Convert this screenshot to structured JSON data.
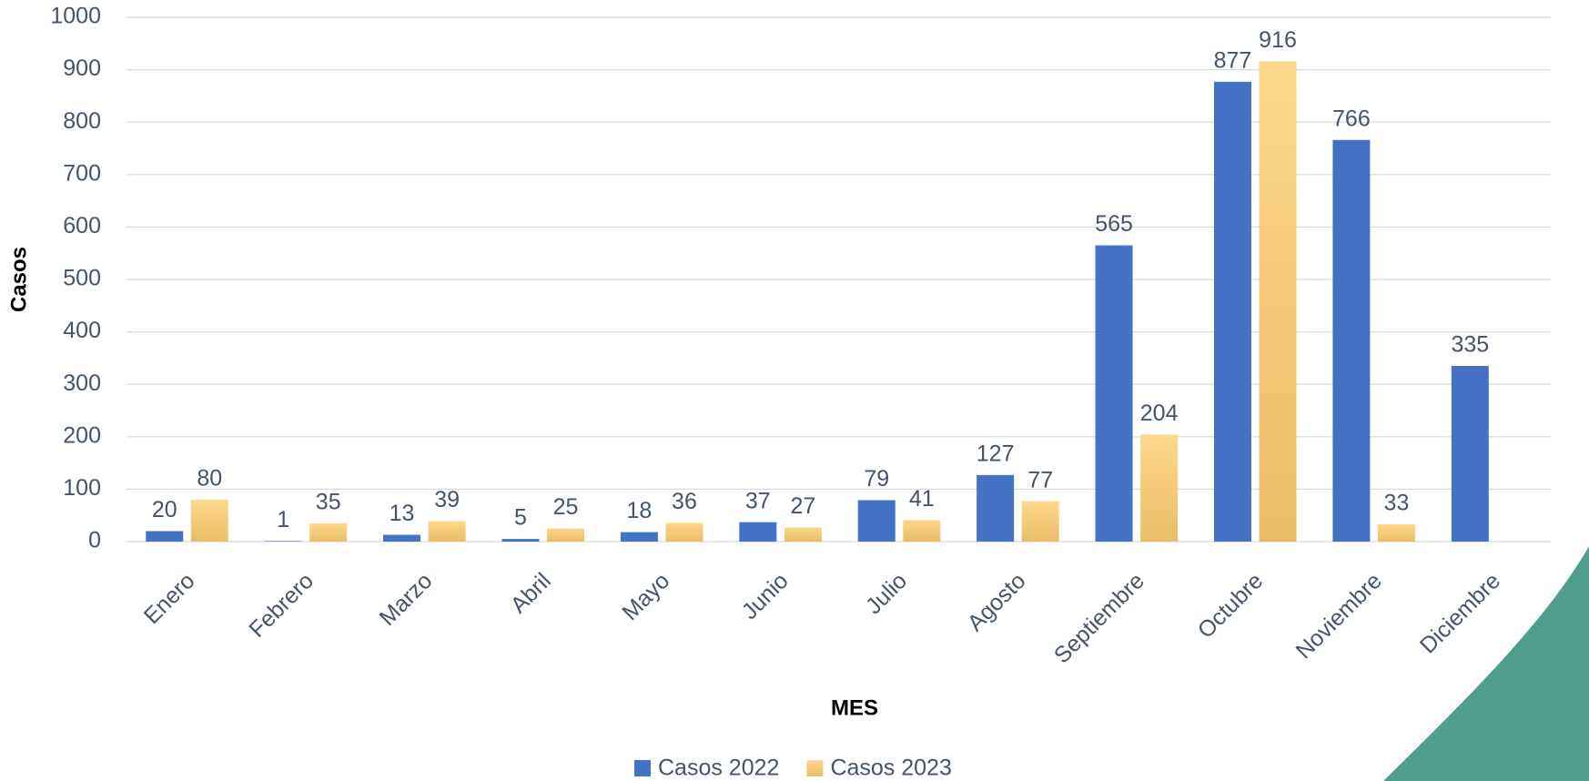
{
  "chart_data": {
    "type": "bar",
    "x_label": "MES",
    "y_label": "Casos",
    "categories": [
      "Enero",
      "Febrero",
      "Marzo",
      "Abril",
      "Mayo",
      "Junio",
      "Julio",
      "Agosto",
      "Septiembre",
      "Octubre",
      "Noviembre",
      "Diciembre"
    ],
    "series": [
      {
        "name": "Casos 2022",
        "color": "#4472c4",
        "values": [
          20,
          1,
          13,
          5,
          18,
          37,
          79,
          127,
          565,
          877,
          766,
          335
        ]
      },
      {
        "name": "Casos 2023",
        "color": "#fcd385",
        "values": [
          80,
          35,
          39,
          25,
          36,
          27,
          41,
          77,
          204,
          916,
          33,
          null
        ]
      }
    ],
    "ylim": [
      0,
      1000
    ],
    "yticks": [
      0,
      100,
      200,
      300,
      400,
      500,
      600,
      700,
      800,
      900,
      1000
    ],
    "grid": true,
    "legend": "bottom"
  }
}
